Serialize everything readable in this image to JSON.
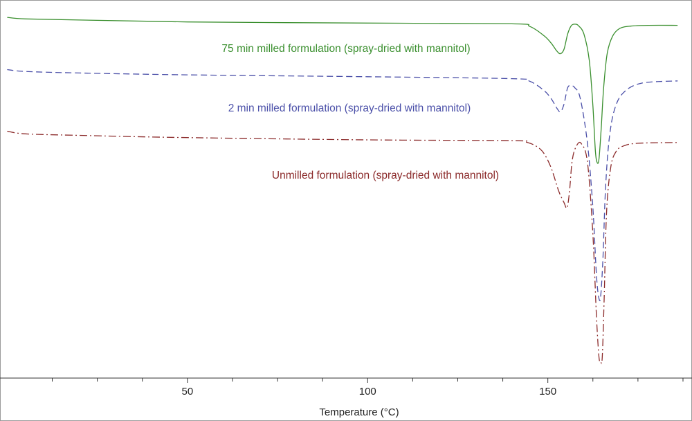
{
  "chart_data": {
    "type": "line",
    "title": "",
    "xlabel": "Temperature (°C)",
    "ylabel": "",
    "xlim": [
      0,
      190
    ],
    "ylim": [
      0,
      100
    ],
    "x_ticks": [
      50,
      100,
      150
    ],
    "x_tick_labels": [
      "50",
      "100",
      "150"
    ],
    "x_minor_step": 12.5,
    "grid": false,
    "legend": "inline labels",
    "series": [
      {
        "name": "75 min milled formulation (spray-dried with mannitol)",
        "color": "#3a8f2e",
        "dash": "solid",
        "x": [
          0,
          5,
          20,
          50,
          100,
          140,
          145,
          149,
          151,
          152.5,
          153.5,
          154.5,
          155.5,
          156.5,
          157.5,
          158.5,
          160,
          161.5,
          162.5,
          163.2,
          163.7,
          164.2,
          164.8,
          165.5,
          166.5,
          168,
          170,
          173,
          178,
          186
        ],
        "y": [
          95.4,
          95,
          94.7,
          94.2,
          93.9,
          93.7,
          93,
          90.5,
          88.5,
          86.5,
          85.8,
          87,
          91,
          93.2,
          93.6,
          93.2,
          91,
          84,
          72,
          60,
          57,
          58,
          66,
          77,
          86,
          90.5,
          92.5,
          93.1,
          93.3,
          93.3
        ]
      },
      {
        "name": "2 min milled formulation (spray-dried with mannitol)",
        "color": "#4a4fa8",
        "dash": "dashed",
        "x": [
          0,
          5,
          20,
          50,
          100,
          140,
          145,
          149,
          151,
          152.5,
          153.5,
          154.5,
          155.5,
          156.5,
          157.5,
          159,
          161,
          162.5,
          163.5,
          164.2,
          164.7,
          165.3,
          166,
          167,
          168.5,
          171,
          176,
          186
        ],
        "y": [
          81.6,
          81.1,
          80.7,
          80.2,
          79.7,
          79.2,
          78.5,
          76,
          73.8,
          71.4,
          70.4,
          72.5,
          76.8,
          77.3,
          76.8,
          74,
          62,
          45,
          27,
          21,
          22,
          32,
          50,
          63,
          71,
          75.5,
          78,
          78.6
        ]
      },
      {
        "name": "Unmilled formulation (spray-dried with mannitol)",
        "color": "#8b2a2a",
        "dash": "dashdot",
        "x": [
          0,
          5,
          20,
          50,
          100,
          140,
          144,
          147,
          149,
          151,
          153,
          154.5,
          155.3,
          156,
          156.8,
          158,
          159.3,
          161,
          162.5,
          163.5,
          164.2,
          164.7,
          165.1,
          165.6,
          166.3,
          167.5,
          169,
          171,
          175,
          186
        ],
        "y": [
          65.3,
          64.6,
          64.2,
          63.6,
          63,
          62.8,
          62.4,
          61.2,
          59.3,
          55.4,
          49.5,
          46.4,
          45,
          49.2,
          57.8,
          61.5,
          62,
          57,
          38,
          16,
          5.5,
          4.2,
          5.5,
          20,
          44,
          56,
          60,
          61.4,
          62.1,
          62.3
        ]
      }
    ],
    "annotations": [
      "75 min milled formulation (spray-dried with mannitol)",
      "2 min milled formulation (spray-dried with mannitol)",
      "Unmilled formulation (spray-dried with mannitol)"
    ]
  }
}
